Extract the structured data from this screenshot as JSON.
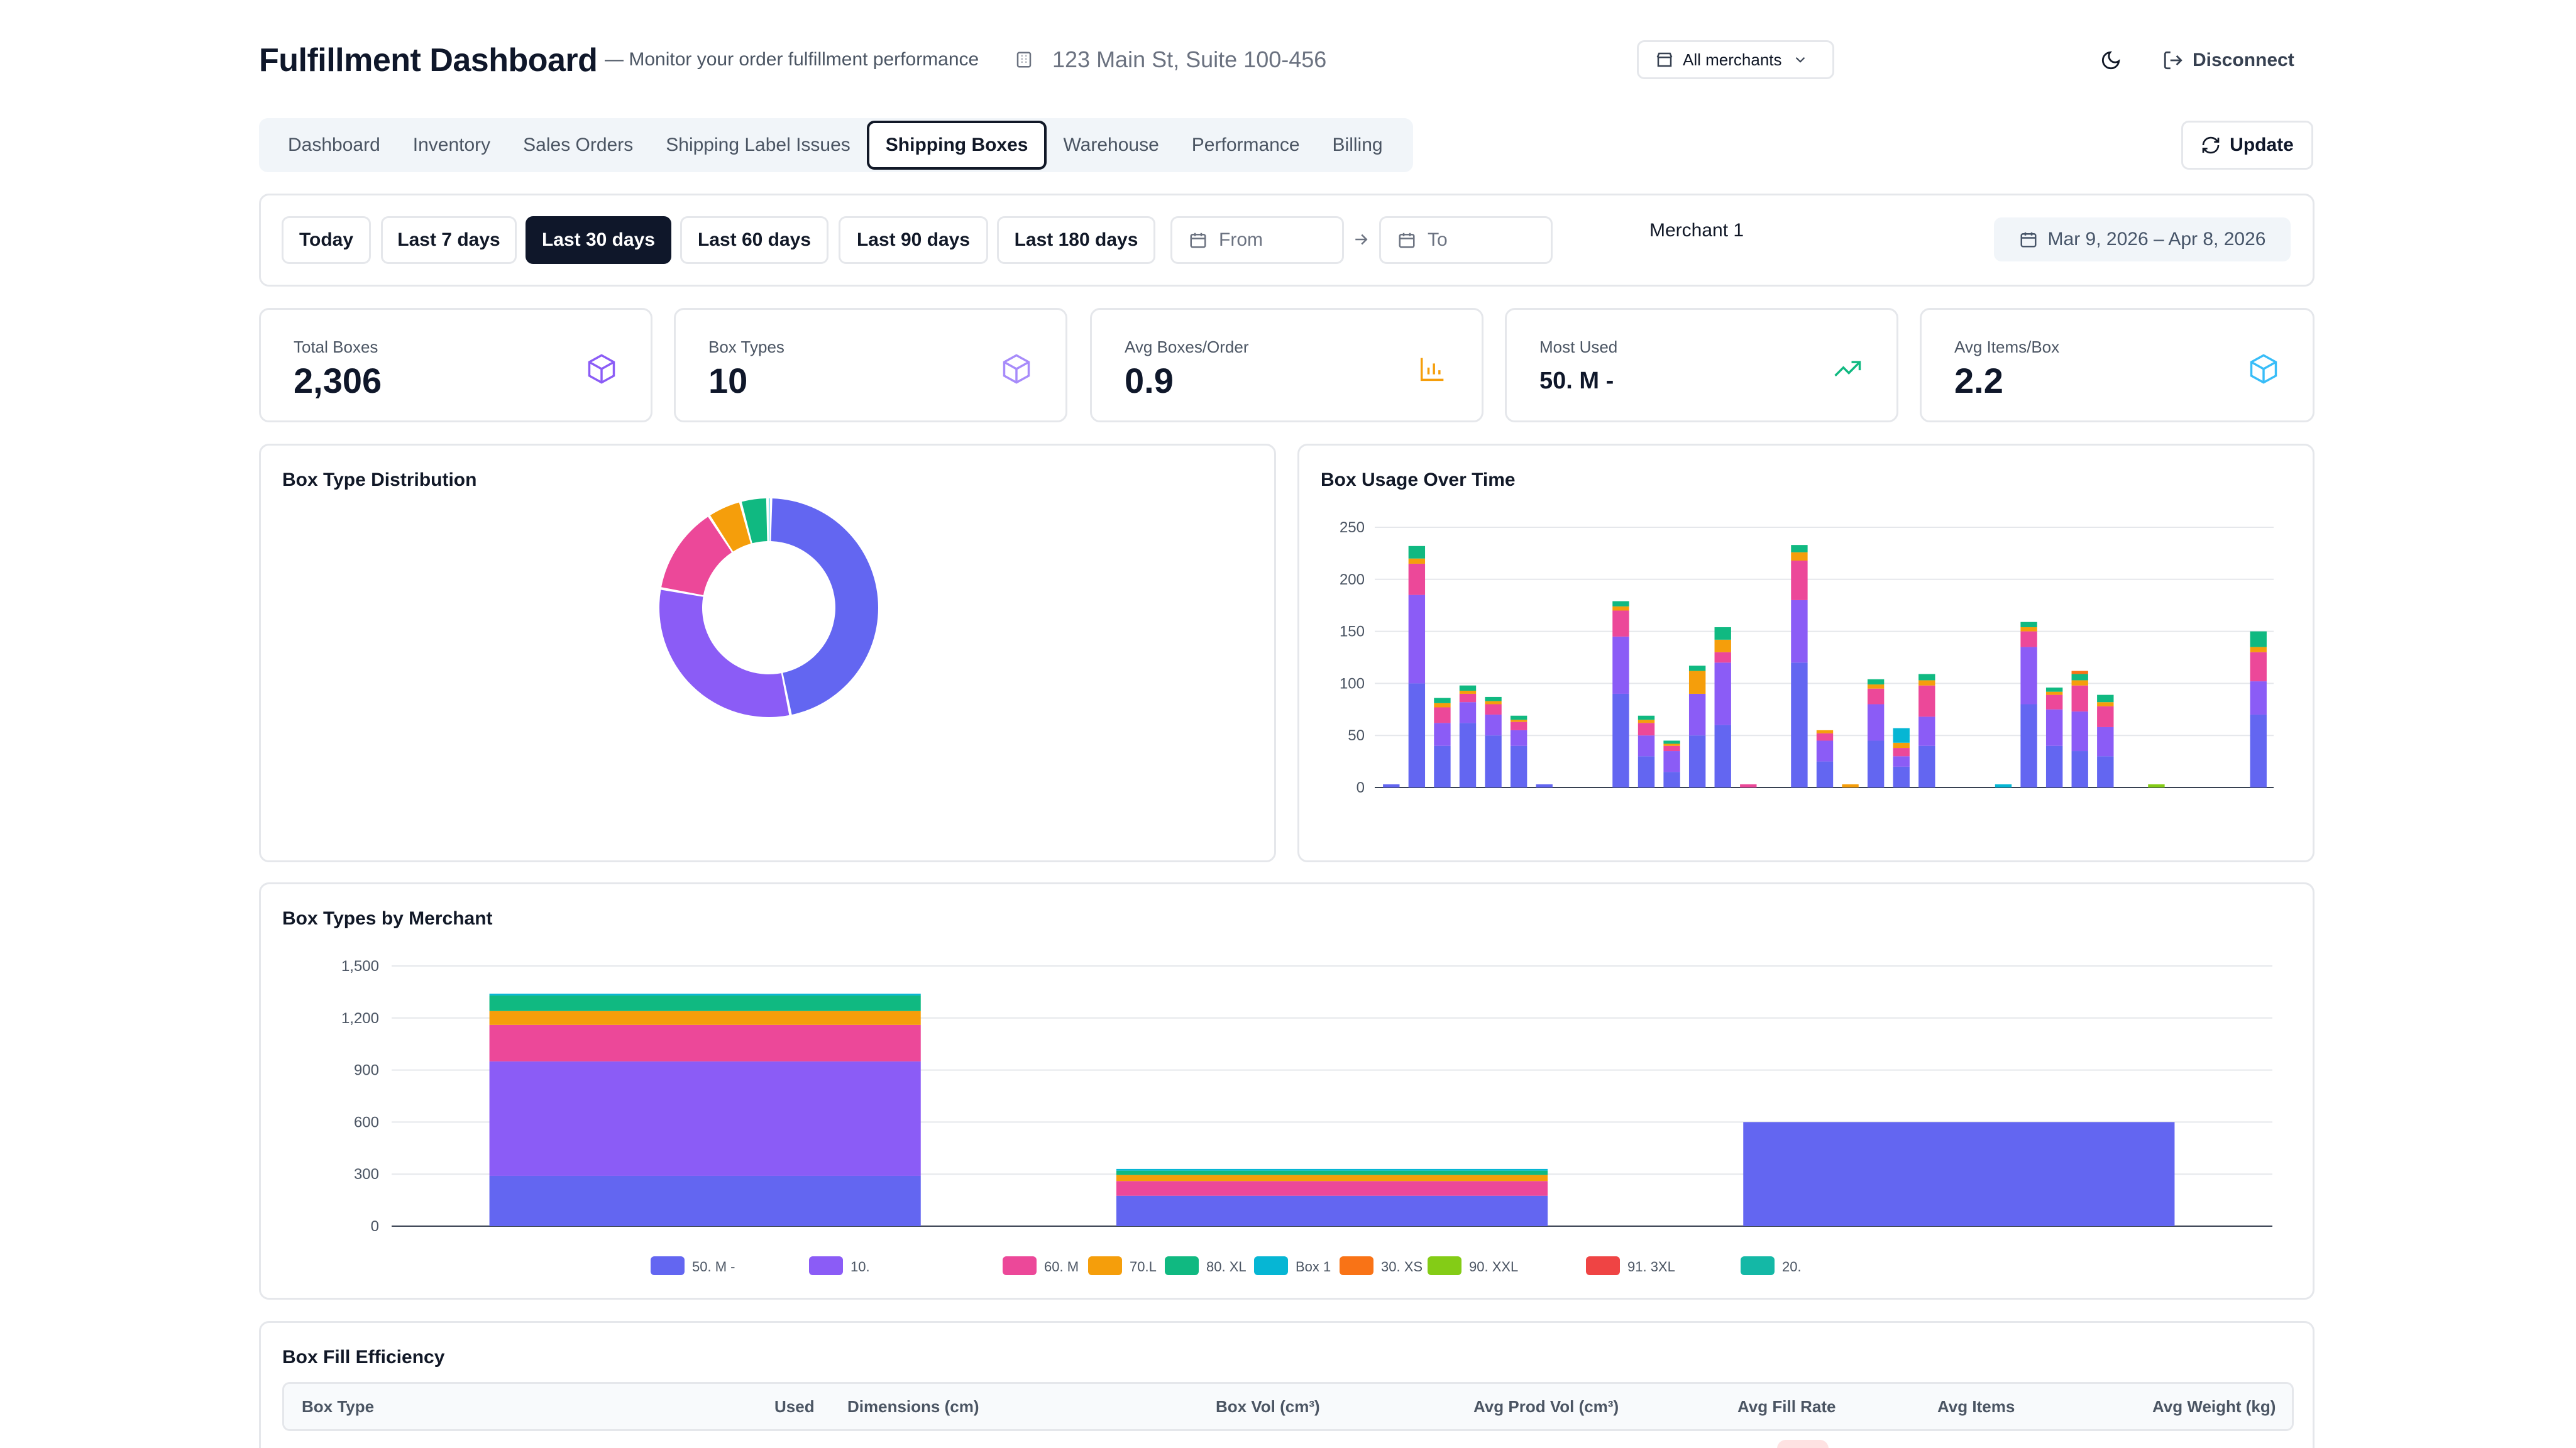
{
  "header": {
    "title": "Fulfillment Dashboard",
    "subtitle": "— Monitor your order fulfillment performance",
    "address": "123 Main St, Suite 100-456",
    "merchant_select": "All merchants",
    "disconnect": "Disconnect"
  },
  "tabs": [
    {
      "label": "Dashboard"
    },
    {
      "label": "Inventory"
    },
    {
      "label": "Sales Orders"
    },
    {
      "label": "Shipping Label Issues"
    },
    {
      "label": "Shipping Boxes"
    },
    {
      "label": "Warehouse"
    },
    {
      "label": "Performance"
    },
    {
      "label": "Billing"
    }
  ],
  "active_tab": "Shipping Boxes",
  "update_label": "Update",
  "filters": {
    "ranges": [
      "Today",
      "Last 7 days",
      "Last 30 days",
      "Last 60 days",
      "Last 90 days",
      "Last 180 days"
    ],
    "active_range": "Last 30 days",
    "from_placeholder": "From",
    "to_placeholder": "To",
    "merchant": "Merchant 1",
    "date_range": "Mar 9, 2026 – Apr 8, 2026"
  },
  "kpis": [
    {
      "label": "Total Boxes",
      "value": "2,306",
      "icon": "box-icon",
      "color": "#8b5cf6"
    },
    {
      "label": "Box Types",
      "value": "10",
      "icon": "box-icon",
      "color": "#a78bfa"
    },
    {
      "label": "Avg Boxes/Order",
      "value": "0.9",
      "icon": "bar-chart-icon",
      "color": "#f59e0b"
    },
    {
      "label": "Most Used",
      "value": "50. M -",
      "icon": "trending-up-icon",
      "color": "#10b981"
    },
    {
      "label": "Avg Items/Box",
      "value": "2.2",
      "icon": "box-icon",
      "color": "#38bdf8"
    }
  ],
  "colors": {
    "50. M -": "#6366f1",
    "10.": "#8b5cf6",
    "60. M": "#ec4899",
    "70.L": "#f59e0b",
    "80. XL": "#10b981",
    "Box 1": "#06b6d4",
    "30. XS": "#f97316",
    "90. XXL": "#84cc16",
    "91. 3XL": "#ef4444",
    "20.": "#14b8a6"
  },
  "donut": {
    "title": "Box Type Distribution",
    "chart_data": {
      "type": "pie",
      "labels": [
        "50. M -",
        "10.",
        "60. M",
        "70.L",
        "80. XL",
        "Box 1"
      ],
      "values": [
        46.5,
        31,
        13,
        5,
        4,
        0.5
      ]
    }
  },
  "usage": {
    "title": "Box Usage Over Time",
    "chart_data": {
      "type": "bar",
      "stacked": true,
      "y_ticks": [
        0,
        50,
        100,
        150,
        200,
        250
      ],
      "ylim": [
        0,
        250
      ],
      "series_order": [
        "50. M -",
        "10.",
        "60. M",
        "70.L",
        "80. XL",
        "Box 1",
        "30. XS",
        "90. XXL"
      ],
      "bars": [
        {
          "50. M -": 3
        },
        {
          "50. M -": 100,
          "10.": 85,
          "60. M": 30,
          "70.L": 5,
          "80. XL": 12
        },
        {
          "50. M -": 40,
          "10.": 22,
          "60. M": 15,
          "70.L": 4,
          "80. XL": 5
        },
        {
          "50. M -": 62,
          "10.": 20,
          "60. M": 8,
          "70.L": 3,
          "80. XL": 5
        },
        {
          "50. M -": 50,
          "10.": 20,
          "60. M": 10,
          "70.L": 3,
          "80. XL": 4
        },
        {
          "50. M -": 40,
          "10.": 15,
          "60. M": 8,
          "70.L": 2,
          "80. XL": 4
        },
        {
          "50. M -": 3
        },
        {},
        {},
        {
          "50. M -": 90,
          "10.": 55,
          "60. M": 25,
          "70.L": 4,
          "80. XL": 5
        },
        {
          "50. M -": 30,
          "10.": 20,
          "60. M": 12,
          "70.L": 3,
          "80. XL": 4
        },
        {
          "50. M -": 15,
          "10.": 20,
          "60. M": 5,
          "70.L": 2,
          "80. XL": 3
        },
        {
          "50. M -": 50,
          "10.": 40,
          "70.L": 22,
          "80. XL": 5
        },
        {
          "50. M -": 60,
          "10.": 60,
          "60. M": 10,
          "70.L": 12,
          "80. XL": 12
        },
        {
          "60. M": 3
        },
        {},
        {
          "50. M -": 120,
          "10.": 60,
          "60. M": 38,
          "70.L": 8,
          "80. XL": 7
        },
        {
          "50. M -": 25,
          "10.": 20,
          "60. M": 7,
          "70.L": 3
        },
        {
          "70.L": 3
        },
        {
          "50. M -": 45,
          "10.": 35,
          "60. M": 15,
          "70.L": 4,
          "80. XL": 5
        },
        {
          "50. M -": 20,
          "10.": 10,
          "60. M": 8,
          "70.L": 5,
          "Box 1": 14
        },
        {
          "50. M -": 40,
          "10.": 28,
          "60. M": 30,
          "70.L": 5,
          "80. XL": 6
        },
        {},
        {},
        {
          "Box 1": 3
        },
        {
          "50. M -": 80,
          "10.": 55,
          "60. M": 15,
          "70.L": 4,
          "80. XL": 5
        },
        {
          "50. M -": 40,
          "10.": 35,
          "60. M": 14,
          "70.L": 3,
          "80. XL": 4
        },
        {
          "50. M -": 35,
          "10.": 38,
          "60. M": 25,
          "70.L": 5,
          "80. XL": 6,
          "30. XS": 3
        },
        {
          "50. M -": 30,
          "10.": 28,
          "60. M": 20,
          "70.L": 4,
          "80. XL": 7
        },
        {},
        {
          "90. XXL": 3
        },
        {},
        {},
        {},
        {
          "50. M -": 70,
          "10.": 32,
          "60. M": 28,
          "70.L": 5,
          "80. XL": 15
        }
      ]
    }
  },
  "by_merchant": {
    "title": "Box Types by Merchant",
    "chart_data": {
      "type": "bar",
      "stacked": true,
      "y_ticks": [
        "0",
        "300",
        "600",
        "900",
        "1,200",
        "1,500"
      ],
      "ylim": [
        0,
        1500
      ],
      "series_order": [
        "50. M -",
        "10.",
        "60. M",
        "70.L",
        "80. XL",
        "Box 1",
        "30. XS",
        "90. XXL",
        "91. 3XL",
        "20."
      ],
      "bars": [
        {
          "50. M -": 290,
          "10.": 660,
          "60. M": 210,
          "70.L": 80,
          "80. XL": 90,
          "Box 1": 10
        },
        {
          "50. M -": 175,
          "60. M": 85,
          "70.L": 35,
          "80. XL": 25,
          "Box 1": 10
        },
        {
          "50. M -": 600
        }
      ],
      "legend": [
        "50. M -",
        "10.",
        "60. M",
        "70.L",
        "80. XL",
        "Box 1",
        "30. XS",
        "90. XXL",
        "91. 3XL",
        "20."
      ]
    }
  },
  "efficiency": {
    "title": "Box Fill Efficiency",
    "columns": [
      "Box Type",
      "Used",
      "Dimensions (cm)",
      "Box Vol (cm³)",
      "Avg Prod Vol (cm³)",
      "Avg Fill Rate",
      "Avg Items",
      "Avg Weight (kg)"
    ]
  }
}
